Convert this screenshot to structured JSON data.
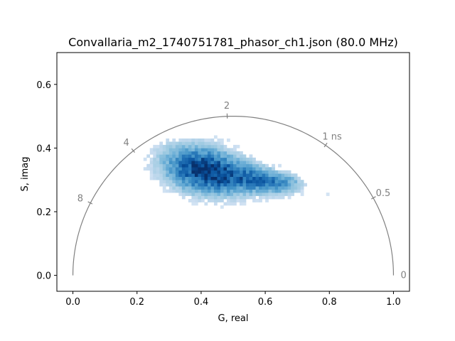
{
  "chart_data": {
    "type": "heatmap",
    "title": "Convallaria_m2_1740751781_phasor_ch1.json (80.0 MHz)",
    "xlabel": "G, real",
    "ylabel": "S, imag",
    "xlim": [
      -0.05,
      1.05
    ],
    "ylim": [
      -0.05,
      0.7
    ],
    "xticks": [
      0.0,
      0.2,
      0.4,
      0.6,
      0.8,
      1.0
    ],
    "xtick_labels": [
      "0.0",
      "0.2",
      "0.4",
      "0.6",
      "0.8",
      "1.0"
    ],
    "yticks": [
      0.0,
      0.2,
      0.4,
      0.6
    ],
    "ytick_labels": [
      "0.0",
      "0.2",
      "0.4",
      "0.6"
    ],
    "grid": false,
    "colormap": "Blues",
    "universal_circle": {
      "color": "#808080",
      "lifetime_labels": [
        {
          "label": "8",
          "g": 0.0547,
          "s": 0.2274
        },
        {
          "label": "4",
          "g": 0.1887,
          "s": 0.3912
        },
        {
          "label": "2",
          "g": 0.4813,
          "s": 0.4996
        },
        {
          "label": "1 ns",
          "g": 0.7879,
          "s": 0.4087
        },
        {
          "label": "0.5",
          "g": 0.9368,
          "s": 0.2432
        },
        {
          "label": "0",
          "g": 1.0,
          "s": 0.0
        }
      ]
    },
    "distribution": {
      "description_components": [
        {
          "g": 0.41,
          "s": 0.33,
          "sg": 0.085,
          "ss": 0.05,
          "w": 1.0,
          "rho": -0.25
        },
        {
          "g": 0.58,
          "s": 0.3,
          "sg": 0.07,
          "ss": 0.03,
          "w": 0.55,
          "rho": -0.3
        },
        {
          "g": 0.66,
          "s": 0.29,
          "sg": 0.04,
          "ss": 0.02,
          "w": 0.25,
          "rho": 0.0
        }
      ],
      "outlier_cluster": {
        "g": 0.8,
        "s": 0.255,
        "sg": 0.01,
        "ss": 0.01,
        "w": 0.08
      },
      "range_g": [
        0.2,
        0.83
      ],
      "range_s": [
        0.13,
        0.52
      ],
      "bin_size": 0.01
    }
  }
}
